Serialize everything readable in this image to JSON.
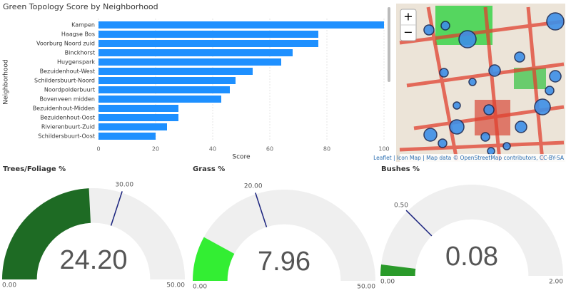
{
  "chart_data": [
    {
      "type": "bar",
      "orientation": "horizontal",
      "title": "Green Topology Score by Neighborhood",
      "x_label": "Score",
      "y_label": "Neighborhood",
      "categories": [
        "Kampen",
        "Haagse Bos",
        "Voorburg Noord zuid",
        "Binckhorst",
        "Huygenspark",
        "Bezuidenhout-West",
        "Schildersbuurt-Noord",
        "Noordpolderbuurt",
        "Bovenveen midden",
        "Bezuidenhout-Midden",
        "Bezuidenhout-Oost",
        "Rivierenbuurt-Zuid",
        "Schildersbuurt-Oost"
      ],
      "values": [
        100,
        77,
        77,
        68,
        64,
        54,
        48,
        46,
        43,
        28,
        28,
        24,
        20
      ],
      "color": "#1e90ff",
      "xlim": [
        0,
        100
      ],
      "xticks": [
        0,
        20,
        40,
        60,
        80,
        100
      ],
      "grid": true
    },
    {
      "type": "gauge",
      "title": "Trees/Foliage %",
      "values": [
        24.2
      ],
      "value_labels": [
        "24.20"
      ],
      "color": "#1e6b24",
      "range": [
        {
          "value": 0,
          "label": "0.00"
        },
        {
          "value": 50,
          "label": "50.00"
        }
      ],
      "target": {
        "value": 30,
        "label": "30.00"
      }
    },
    {
      "type": "gauge",
      "title": "Grass %",
      "values": [
        7.96
      ],
      "color": "#33ee33",
      "range": [
        {
          "value": 0,
          "label": "0.00"
        },
        {
          "value": 50,
          "label": "50.00"
        }
      ],
      "target": {
        "value": 20,
        "label": "20.00"
      }
    },
    {
      "type": "gauge",
      "title": "Bushes %",
      "values": [
        0.08
      ],
      "color": "#2a9a2a",
      "range": [
        {
          "value": 0,
          "label": "0.00"
        },
        {
          "value": 2,
          "label": "2.00"
        }
      ],
      "target": {
        "value": 0.5,
        "label": "0.50"
      }
    }
  ],
  "map": {
    "zoom_in": "+",
    "zoom_out": "−",
    "attribution": "Leaflet | Icon Map | Map data © OpenStreetMap contributors, CC-BY-SA"
  }
}
